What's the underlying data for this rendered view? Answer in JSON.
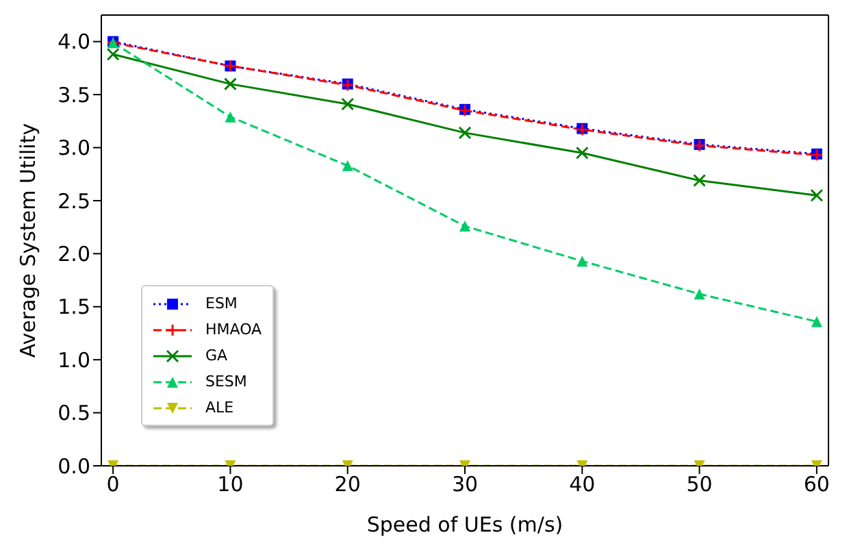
{
  "chart_data": {
    "type": "line",
    "xlabel": "Speed of UEs (m/s)",
    "ylabel": "Average System Utility",
    "x": [
      0,
      10,
      20,
      30,
      40,
      50,
      60
    ],
    "series": [
      {
        "name": "ESM",
        "color": "#0000ff",
        "marker": "square",
        "line_style": "dotted",
        "values": [
          4.0,
          3.77,
          3.6,
          3.36,
          3.18,
          3.03,
          2.94
        ]
      },
      {
        "name": "HMAOA",
        "color": "#ff0000",
        "marker": "cross",
        "line_style": "dashed",
        "values": [
          3.99,
          3.77,
          3.59,
          3.35,
          3.17,
          3.02,
          2.93
        ]
      },
      {
        "name": "GA",
        "color": "#008000",
        "marker": "x",
        "line_style": "solid",
        "values": [
          3.88,
          3.6,
          3.41,
          3.14,
          2.95,
          2.69,
          2.55
        ]
      },
      {
        "name": "SESM",
        "color": "#00cc66",
        "marker": "triangle",
        "line_style": "dashed",
        "values": [
          3.99,
          3.29,
          2.83,
          2.26,
          1.93,
          1.62,
          1.36
        ]
      },
      {
        "name": "ALE",
        "color": "#bfbf00",
        "marker": "triangle-down",
        "line_style": "dashed",
        "values": [
          0,
          0,
          0,
          0,
          0,
          0,
          0
        ]
      }
    ],
    "xlim": [
      -1,
      61
    ],
    "xticks": [
      0,
      10,
      20,
      30,
      40,
      50,
      60
    ],
    "ylim": [
      0,
      4.25
    ],
    "yticks": [
      {
        "value": 0,
        "label": "0.0"
      },
      {
        "value": 0.5,
        "label": "0.5"
      },
      {
        "value": 1,
        "label": "1.0"
      },
      {
        "value": 1.5,
        "label": "1.5"
      },
      {
        "value": 2,
        "label": "2.0"
      },
      {
        "value": 2.5,
        "label": "2.5"
      },
      {
        "value": 3,
        "label": "3.0"
      },
      {
        "value": 3.5,
        "label": "3.5"
      },
      {
        "value": 4,
        "label": "4.0"
      }
    ],
    "grid": false,
    "legend": "left"
  }
}
